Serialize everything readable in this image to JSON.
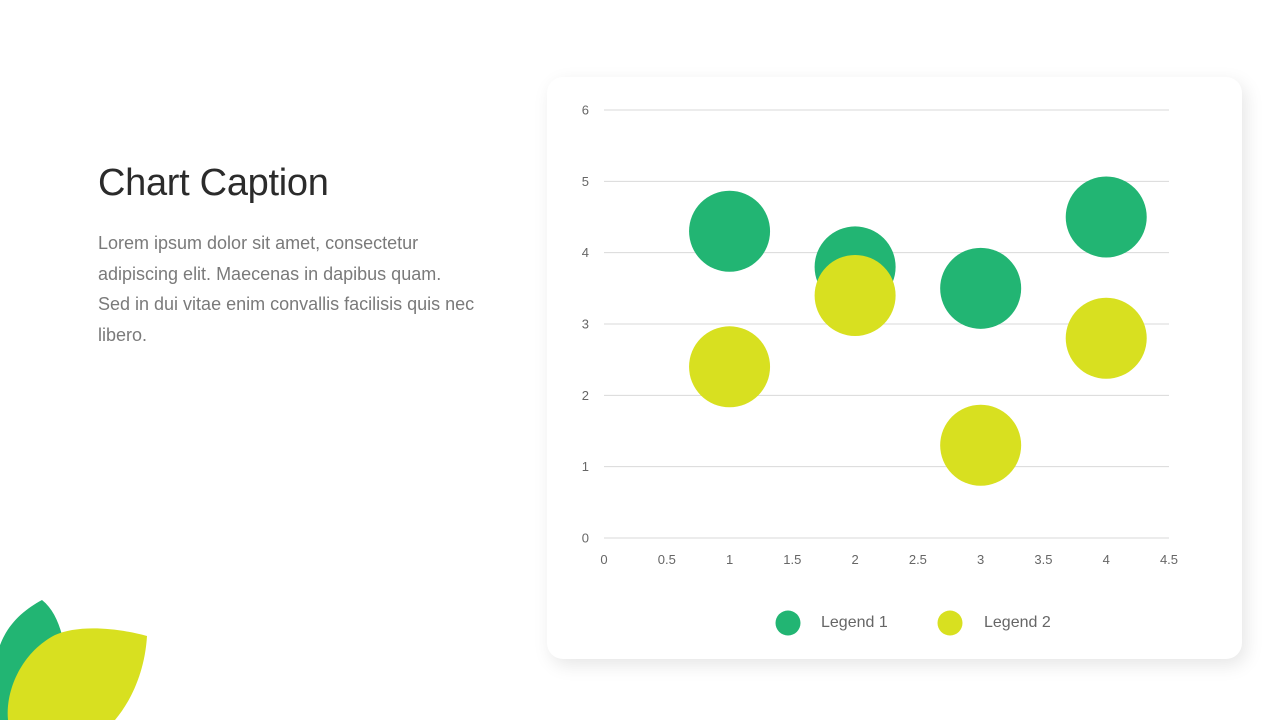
{
  "caption": {
    "title": "Chart Caption",
    "body": "Lorem ipsum dolor sit amet, consectetur adipiscing elit. Maecenas in dapibus quam. Sed in dui vitae enim convallis facilisis quis nec libero."
  },
  "colors": {
    "green": "#22b573",
    "yellow": "#d8e020",
    "grid": "#d9d9d9",
    "tick_text": "#666666"
  },
  "chart_data": {
    "type": "scatter",
    "title": "",
    "xlabel": "",
    "ylabel": "",
    "xlim": [
      0,
      4.5
    ],
    "ylim": [
      0,
      6
    ],
    "xticks": [
      "0",
      "0.5",
      "1",
      "1.5",
      "2",
      "2.5",
      "3",
      "3.5",
      "4",
      "4.5"
    ],
    "yticks": [
      "0",
      "1",
      "2",
      "3",
      "4",
      "5",
      "6"
    ],
    "grid": "horizontal",
    "legend": "bottom",
    "series": [
      {
        "name": "Legend 1",
        "color": "#22b573",
        "points": [
          {
            "x": 1,
            "y": 4.3
          },
          {
            "x": 2,
            "y": 3.8
          },
          {
            "x": 3,
            "y": 3.5
          },
          {
            "x": 4,
            "y": 4.5
          }
        ]
      },
      {
        "name": "Legend 2",
        "color": "#d8e020",
        "points": [
          {
            "x": 1,
            "y": 2.4
          },
          {
            "x": 2,
            "y": 3.4
          },
          {
            "x": 3,
            "y": 1.3
          },
          {
            "x": 4,
            "y": 2.8
          }
        ]
      }
    ]
  }
}
